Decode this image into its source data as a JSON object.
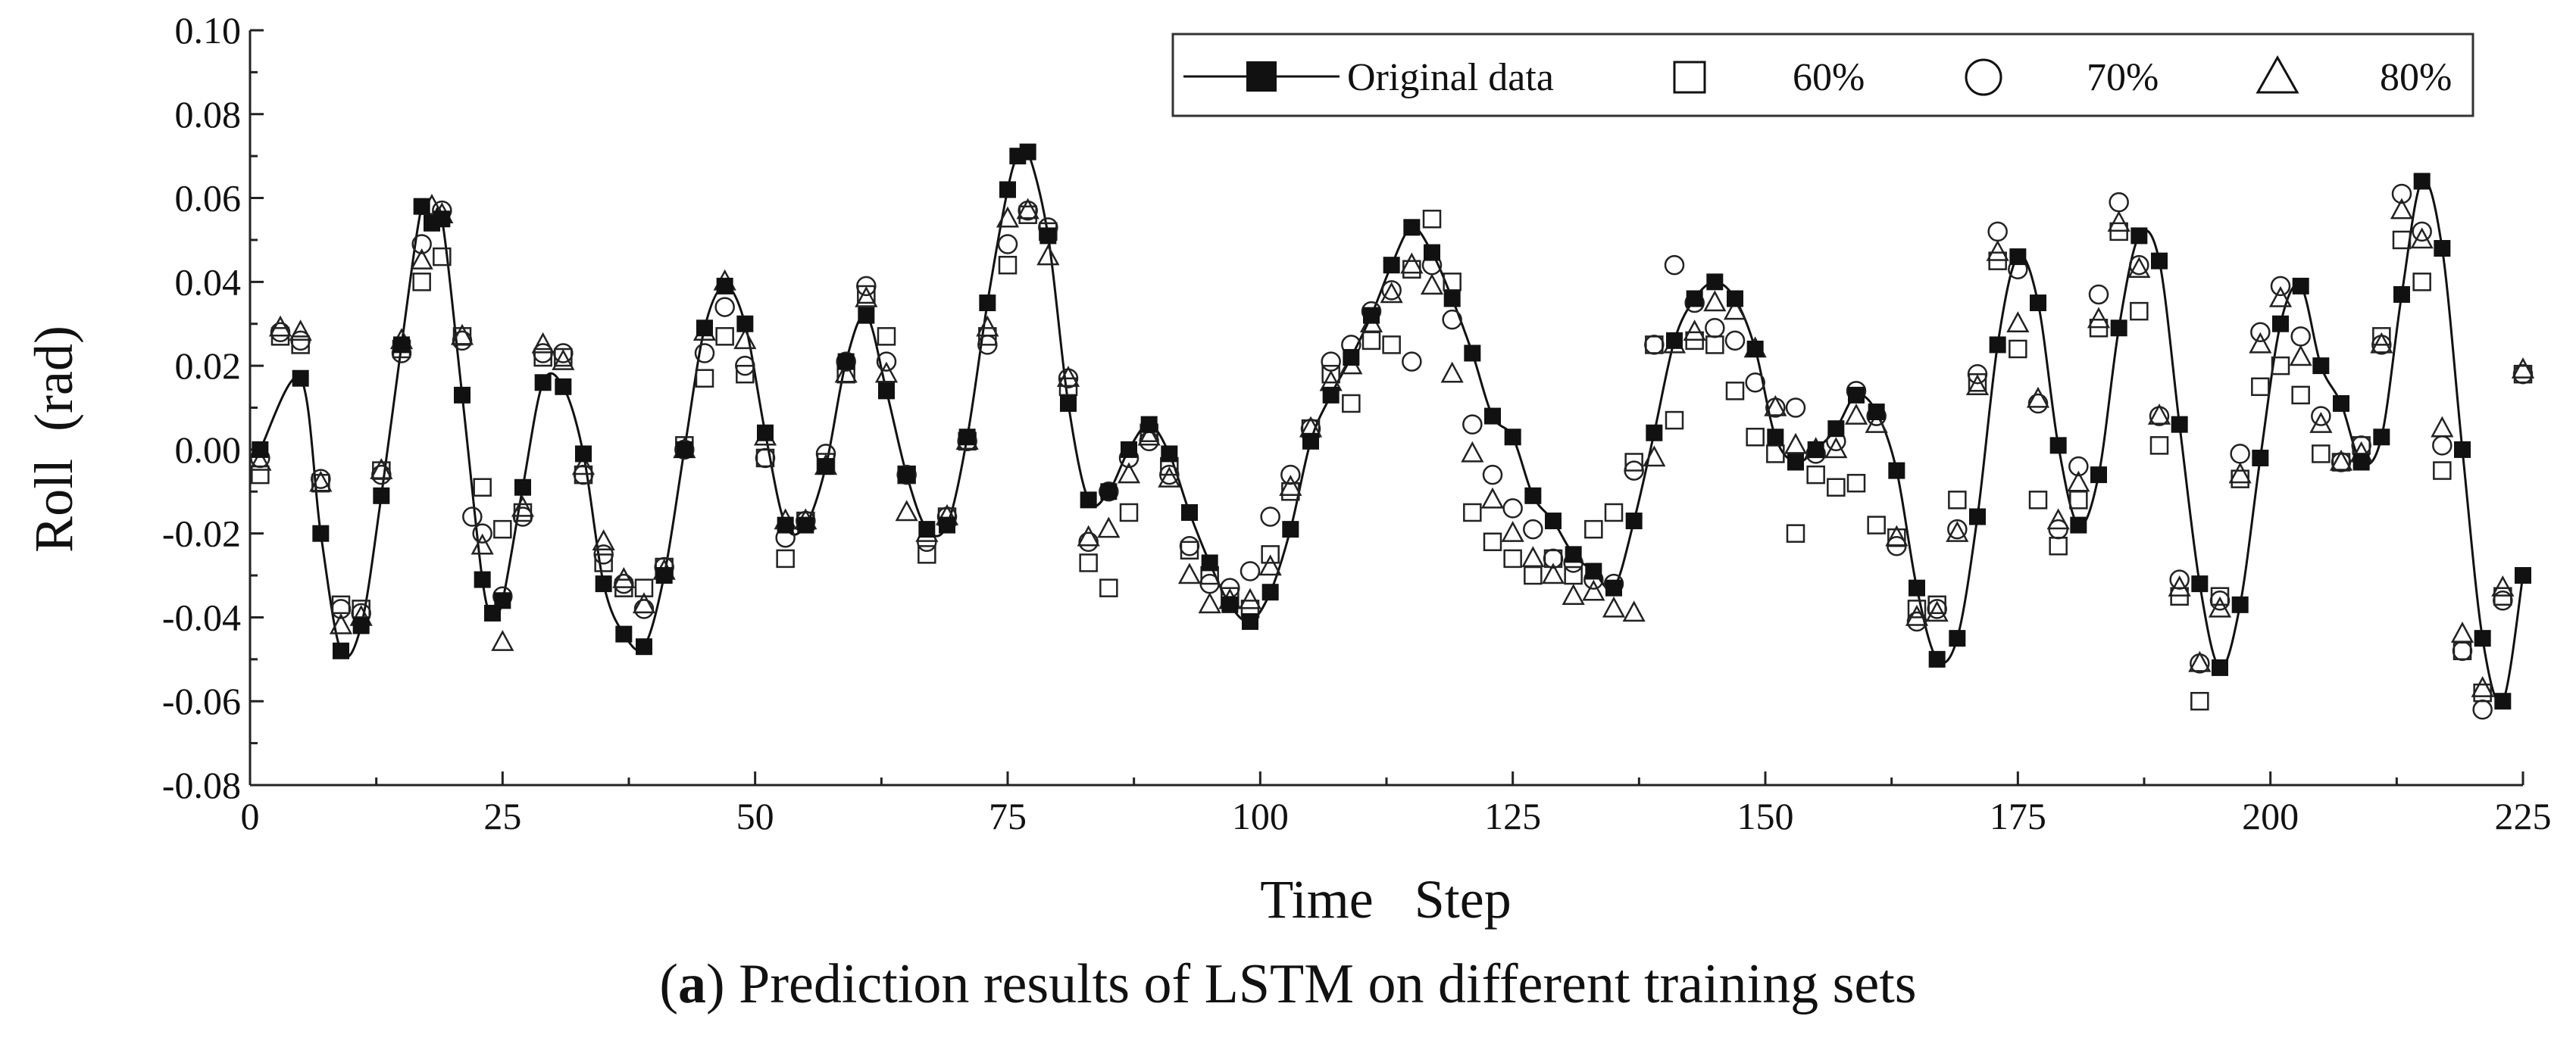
{
  "chart_data": {
    "type": "scatter",
    "title": "",
    "xlabel": "Time   Step",
    "ylabel": "Roll  (rad)",
    "xlim": [
      0,
      225
    ],
    "ylim": [
      -0.08,
      0.1
    ],
    "xticks": [
      0,
      25,
      50,
      75,
      100,
      125,
      150,
      175,
      200,
      225
    ],
    "yticks": [
      -0.08,
      -0.06,
      -0.04,
      -0.02,
      0.0,
      0.02,
      0.04,
      0.06,
      0.08,
      0.1
    ],
    "ytick_labels": [
      "-0.08",
      "-0.06",
      "-0.04",
      "-0.02",
      "0.00",
      "0.02",
      "0.04",
      "0.06",
      "0.08",
      "0.10"
    ],
    "legend_position": "top-right",
    "series": [
      {
        "name": "Original data",
        "marker": "filled-square",
        "line": true,
        "x": [
          1,
          5,
          7,
          9,
          11,
          13,
          15,
          17,
          18,
          19,
          21,
          23,
          24,
          25,
          27,
          29,
          31,
          33,
          35,
          37,
          39,
          41,
          43,
          45,
          47,
          49,
          51,
          53,
          55,
          57,
          59,
          61,
          63,
          65,
          67,
          69,
          71,
          73,
          75,
          76,
          77,
          79,
          81,
          83,
          85,
          87,
          89,
          91,
          93,
          95,
          97,
          99,
          101,
          103,
          105,
          107,
          109,
          111,
          113,
          115,
          117,
          119,
          121,
          123,
          125,
          127,
          129,
          131,
          133,
          135,
          137,
          139,
          141,
          143,
          145,
          147,
          149,
          151,
          153,
          155,
          157,
          159,
          161,
          163,
          165,
          167,
          169,
          171,
          173,
          175,
          177,
          179,
          181,
          183,
          185,
          187,
          189,
          191,
          193,
          195,
          197,
          199,
          201,
          203,
          205,
          207,
          209,
          211,
          213,
          215,
          217,
          219,
          221,
          223,
          225
        ],
        "y": [
          0.0,
          0.017,
          -0.02,
          -0.048,
          -0.042,
          -0.011,
          0.025,
          0.058,
          0.054,
          0.055,
          0.013,
          -0.031,
          -0.039,
          -0.036,
          -0.009,
          0.016,
          0.015,
          -0.001,
          -0.032,
          -0.044,
          -0.047,
          -0.03,
          0.0,
          0.029,
          0.039,
          0.03,
          0.004,
          -0.018,
          -0.018,
          -0.004,
          0.021,
          0.032,
          0.014,
          -0.006,
          -0.019,
          -0.018,
          0.003,
          0.035,
          0.062,
          0.07,
          0.071,
          0.051,
          0.011,
          -0.012,
          -0.01,
          0.0,
          0.006,
          -0.001,
          -0.015,
          -0.027,
          -0.037,
          -0.041,
          -0.034,
          -0.019,
          0.002,
          0.013,
          0.022,
          0.032,
          0.044,
          0.053,
          0.047,
          0.036,
          0.023,
          0.008,
          0.003,
          -0.011,
          -0.017,
          -0.025,
          -0.029,
          -0.033,
          -0.017,
          0.004,
          0.026,
          0.036,
          0.04,
          0.036,
          0.024,
          0.003,
          -0.003,
          0.0,
          0.005,
          0.013,
          0.009,
          -0.005,
          -0.033,
          -0.05,
          -0.045,
          -0.016,
          0.025,
          0.046,
          0.035,
          0.001,
          -0.018,
          -0.006,
          0.029,
          0.051,
          0.045,
          0.006,
          -0.032,
          -0.052,
          -0.037,
          -0.002,
          0.03,
          0.039,
          0.02,
          0.011,
          -0.003,
          0.003,
          0.037,
          0.064,
          0.048,
          0.0,
          -0.045,
          -0.06,
          -0.03
        ]
      },
      {
        "name": "60%",
        "marker": "open-square",
        "x": [
          1,
          3,
          5,
          7,
          9,
          11,
          13,
          15,
          17,
          19,
          21,
          23,
          25,
          27,
          29,
          31,
          33,
          35,
          37,
          39,
          41,
          43,
          45,
          47,
          49,
          51,
          53,
          55,
          57,
          59,
          61,
          63,
          65,
          67,
          69,
          71,
          73,
          75,
          77,
          79,
          81,
          83,
          85,
          87,
          89,
          91,
          93,
          95,
          97,
          99,
          101,
          103,
          105,
          107,
          109,
          111,
          113,
          115,
          117,
          119,
          121,
          123,
          125,
          127,
          129,
          131,
          133,
          135,
          137,
          139,
          141,
          143,
          145,
          147,
          149,
          151,
          153,
          155,
          157,
          159,
          161,
          163,
          165,
          167,
          169,
          171,
          173,
          175,
          177,
          179,
          181,
          183,
          185,
          187,
          189,
          191,
          193,
          195,
          197,
          199,
          201,
          203,
          205,
          207,
          209,
          211,
          213,
          215,
          217,
          219,
          221,
          223,
          225
        ],
        "y": [
          -0.006,
          0.027,
          0.025,
          -0.008,
          -0.037,
          -0.038,
          -0.005,
          0.024,
          0.04,
          0.046,
          0.027,
          -0.009,
          -0.019,
          -0.015,
          0.022,
          0.022,
          -0.006,
          -0.027,
          -0.033,
          -0.033,
          -0.028,
          0.001,
          0.017,
          0.027,
          0.018,
          -0.002,
          -0.026,
          -0.017,
          -0.003,
          0.018,
          0.037,
          0.027,
          -0.006,
          -0.025,
          -0.016,
          0.002,
          0.027,
          0.044,
          0.056,
          0.052,
          0.015,
          -0.027,
          -0.033,
          -0.015,
          0.004,
          -0.004,
          -0.024,
          -0.03,
          -0.035,
          -0.038,
          -0.025,
          -0.01,
          0.005,
          0.018,
          0.011,
          0.026,
          0.025,
          0.043,
          0.055,
          0.04,
          -0.015,
          -0.022,
          -0.026,
          -0.03,
          -0.026,
          -0.03,
          -0.019,
          -0.015,
          -0.003,
          0.025,
          0.007,
          0.026,
          0.025,
          0.014,
          0.003,
          -0.001,
          -0.02,
          -0.006,
          -0.009,
          -0.008,
          -0.018,
          -0.021,
          -0.038,
          -0.037,
          -0.012,
          0.016,
          0.045,
          0.024,
          -0.012,
          -0.023,
          -0.012,
          0.029,
          0.052,
          0.033,
          0.001,
          -0.035,
          -0.06,
          -0.035,
          -0.007,
          0.015,
          0.02,
          0.013,
          -0.001,
          -0.003,
          0.001,
          0.027,
          0.05,
          0.04,
          -0.005,
          -0.048,
          -0.058,
          -0.035,
          0.018
        ]
      },
      {
        "name": "70%",
        "marker": "open-circle",
        "x": [
          1,
          3,
          5,
          7,
          9,
          11,
          13,
          15,
          17,
          19,
          21,
          22,
          23,
          25,
          27,
          29,
          31,
          33,
          35,
          37,
          39,
          41,
          43,
          45,
          47,
          49,
          51,
          53,
          55,
          57,
          59,
          61,
          63,
          65,
          67,
          69,
          71,
          73,
          75,
          77,
          79,
          81,
          83,
          85,
          87,
          89,
          91,
          93,
          95,
          97,
          99,
          101,
          103,
          105,
          107,
          109,
          111,
          113,
          115,
          117,
          119,
          121,
          123,
          125,
          127,
          129,
          131,
          133,
          135,
          137,
          139,
          141,
          143,
          145,
          147,
          149,
          151,
          153,
          155,
          157,
          159,
          161,
          163,
          165,
          167,
          169,
          171,
          173,
          175,
          177,
          179,
          181,
          183,
          185,
          187,
          189,
          191,
          193,
          195,
          197,
          199,
          201,
          203,
          205,
          207,
          209,
          211,
          213,
          215,
          217,
          219,
          221,
          223,
          225
        ],
        "y": [
          -0.002,
          0.028,
          0.026,
          -0.007,
          -0.038,
          -0.039,
          -0.006,
          0.023,
          0.049,
          0.057,
          0.026,
          -0.016,
          -0.02,
          -0.035,
          -0.016,
          0.023,
          0.023,
          -0.006,
          -0.025,
          -0.032,
          -0.038,
          -0.028,
          0.0,
          0.023,
          0.034,
          0.02,
          -0.002,
          -0.021,
          -0.017,
          -0.001,
          0.021,
          0.039,
          0.021,
          -0.006,
          -0.022,
          -0.016,
          0.002,
          0.025,
          0.049,
          0.057,
          0.053,
          0.017,
          -0.022,
          -0.01,
          -0.002,
          0.002,
          -0.006,
          -0.023,
          -0.032,
          -0.033,
          -0.029,
          -0.016,
          -0.006,
          0.005,
          0.021,
          0.025,
          0.033,
          0.038,
          0.021,
          0.044,
          0.031,
          0.006,
          -0.006,
          -0.014,
          -0.019,
          -0.026,
          -0.027,
          -0.031,
          -0.032,
          -0.005,
          0.025,
          0.044,
          0.035,
          0.029,
          0.026,
          0.016,
          0.01,
          0.01,
          -0.001,
          0.002,
          0.014,
          0.008,
          -0.023,
          -0.041,
          -0.038,
          -0.019,
          0.018,
          0.052,
          0.043,
          0.011,
          -0.019,
          -0.004,
          0.037,
          0.059,
          0.044,
          0.008,
          -0.031,
          -0.051,
          -0.036,
          -0.001,
          0.028,
          0.039,
          0.027,
          0.008,
          -0.003,
          0.001,
          0.025,
          0.061,
          0.052,
          0.001,
          -0.048,
          -0.062,
          -0.036,
          0.018
        ]
      },
      {
        "name": "80%",
        "marker": "open-triangle",
        "x": [
          1,
          3,
          5,
          7,
          9,
          11,
          13,
          15,
          17,
          18,
          19,
          21,
          23,
          25,
          27,
          29,
          31,
          33,
          35,
          37,
          39,
          41,
          43,
          45,
          47,
          49,
          51,
          53,
          55,
          57,
          59,
          61,
          63,
          65,
          67,
          69,
          71,
          73,
          75,
          77,
          79,
          81,
          83,
          85,
          87,
          89,
          91,
          93,
          95,
          97,
          99,
          101,
          103,
          105,
          107,
          109,
          111,
          113,
          115,
          117,
          119,
          121,
          123,
          125,
          127,
          129,
          131,
          133,
          135,
          137,
          139,
          141,
          143,
          145,
          147,
          149,
          151,
          153,
          155,
          157,
          159,
          161,
          163,
          165,
          167,
          169,
          171,
          173,
          175,
          177,
          179,
          181,
          183,
          185,
          187,
          189,
          191,
          193,
          195,
          197,
          199,
          201,
          203,
          205,
          207,
          209,
          211,
          213,
          215,
          217,
          219,
          221,
          223,
          225
        ],
        "y": [
          -0.003,
          0.029,
          0.028,
          -0.008,
          -0.042,
          -0.04,
          -0.005,
          0.026,
          0.045,
          0.058,
          0.056,
          0.027,
          -0.023,
          -0.046,
          -0.014,
          0.025,
          0.021,
          -0.004,
          -0.022,
          -0.031,
          -0.037,
          -0.029,
          0.0,
          0.028,
          0.04,
          0.026,
          0.003,
          -0.017,
          -0.017,
          -0.004,
          0.018,
          0.036,
          0.018,
          -0.015,
          -0.02,
          -0.016,
          0.002,
          0.029,
          0.055,
          0.057,
          0.046,
          0.017,
          -0.021,
          -0.019,
          -0.006,
          0.003,
          -0.007,
          -0.03,
          -0.037,
          -0.036,
          -0.036,
          -0.028,
          -0.009,
          0.005,
          0.016,
          0.02,
          0.03,
          0.037,
          0.044,
          0.039,
          0.018,
          -0.001,
          -0.012,
          -0.02,
          -0.026,
          -0.03,
          -0.035,
          -0.034,
          -0.038,
          -0.039,
          -0.002,
          0.025,
          0.028,
          0.035,
          0.033,
          0.024,
          0.01,
          0.001,
          0.0,
          0.0,
          0.008,
          0.006,
          -0.021,
          -0.04,
          -0.039,
          -0.02,
          0.015,
          0.047,
          0.03,
          0.012,
          -0.017,
          -0.008,
          0.031,
          0.054,
          0.043,
          0.008,
          -0.033,
          -0.051,
          -0.038,
          -0.006,
          0.025,
          0.036,
          0.022,
          0.006,
          -0.003,
          -0.001,
          0.025,
          0.057,
          0.05,
          0.005,
          -0.044,
          -0.057,
          -0.033,
          0.019
        ]
      }
    ]
  },
  "legend": {
    "original_label": "Original data",
    "label_60": "60%",
    "label_70": "70%",
    "label_80": "80%"
  },
  "caption": {
    "letter": "a",
    "open": "(",
    "text": ") Prediction results of LSTM on different training sets"
  }
}
